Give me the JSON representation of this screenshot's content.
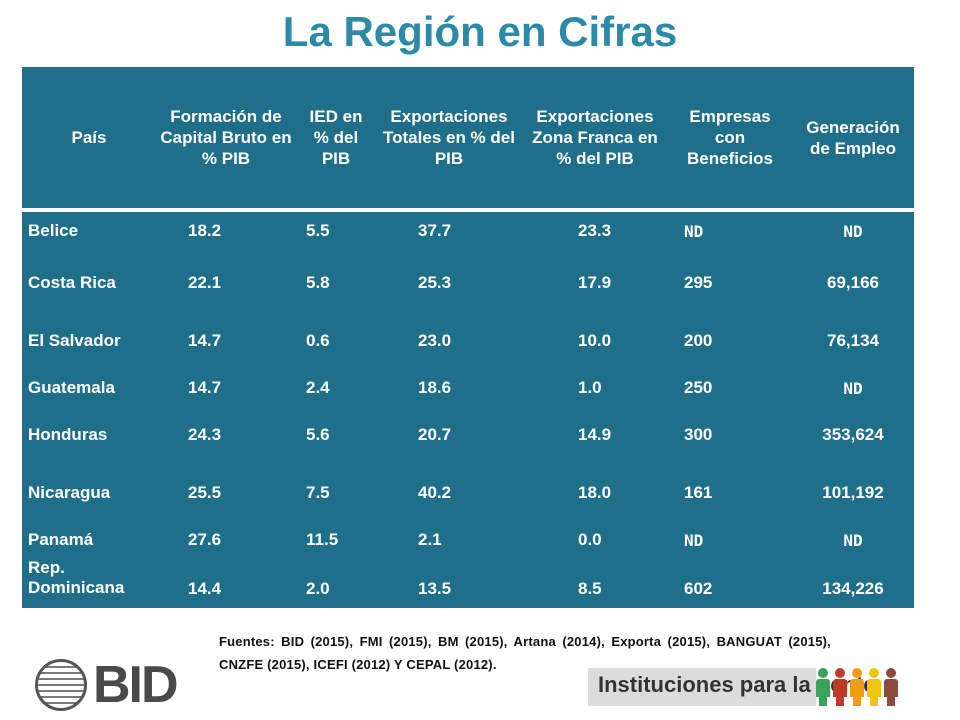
{
  "title": "La Región en Cifras",
  "table": {
    "headers": [
      "País",
      "Formación de Capital Bruto en % PIB",
      "IED en % del PIB",
      "Exportaciones Totales en % del PIB",
      "Exportaciones Zona Franca en % del PIB",
      "Empresas con Beneficios",
      "Generación de Empleo"
    ],
    "rows": [
      [
        "Belice",
        "18.2",
        "5.5",
        "37.7",
        "23.3",
        "ND",
        "ND"
      ],
      [
        "Costa Rica",
        "22.1",
        "5.8",
        "25.3",
        "17.9",
        "295",
        "69,166"
      ],
      [
        "El Salvador",
        "14.7",
        "0.6",
        "23.0",
        "10.0",
        "200",
        "76,134"
      ],
      [
        "Guatemala",
        "14.7",
        "2.4",
        "18.6",
        "1.0",
        "250",
        "ND"
      ],
      [
        "Honduras",
        "24.3",
        "5.6",
        "20.7",
        "14.9",
        "300",
        "353,624"
      ],
      [
        "Nicaragua",
        "25.5",
        "7.5",
        "40.2",
        "18.0",
        "161",
        "101,192"
      ],
      [
        "Panamá",
        "27.6",
        "11.5",
        "2.1",
        "0.0",
        "ND",
        "ND"
      ],
      [
        "Rep. Dominicana",
        "14.4",
        "2.0",
        "13.5",
        "8.5",
        "602",
        "134,226"
      ]
    ]
  },
  "footer": {
    "sources": "Fuentes: BID (2015), FMI (2015), BM (2015), Artana (2014), Exporta (2015), BANGUAT (2015), CNZFE (2015), ICEFI (2012) Y CEPAL (2012).",
    "logo_text": "BID",
    "tagline": "Instituciones para la gente"
  },
  "colors": {
    "title": "#2c8aa8",
    "table_bg": "#1f6f8b",
    "people": [
      "#3aa35a",
      "#c0392b",
      "#f39c12",
      "#f1c40f",
      "#8e4a3c"
    ]
  }
}
